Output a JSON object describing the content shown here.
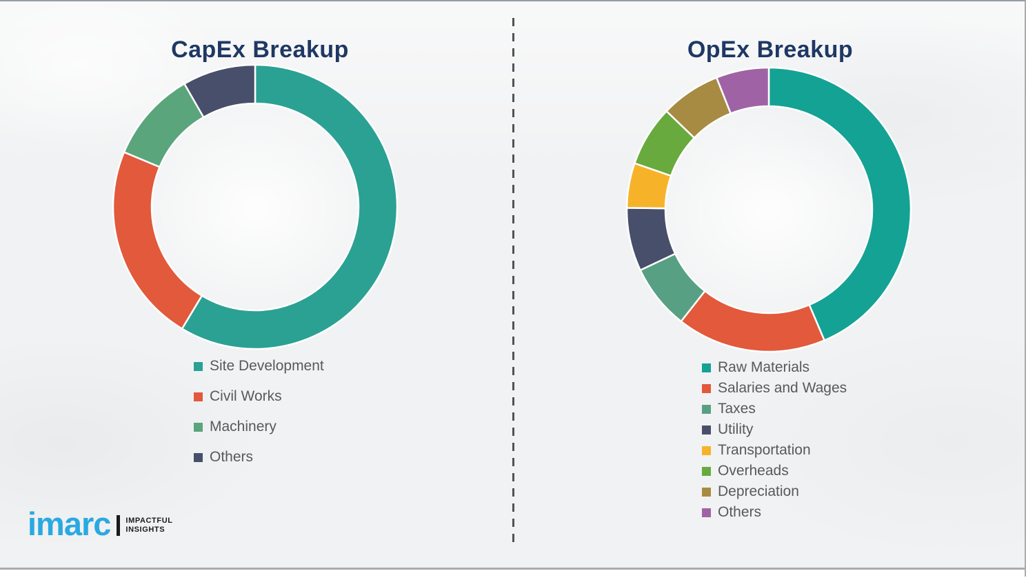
{
  "charts_header_note": "Two donut charts side by side separated by a vertical dashed divider",
  "chart_data": [
    {
      "type": "pie",
      "subtype": "donut",
      "title": "CapEx Breakup",
      "categories": [
        "Site Development",
        "Civil Works",
        "Machinery",
        "Others"
      ],
      "values": [
        58.6,
        22.7,
        10.4,
        8.3
      ],
      "colors": [
        "#2aa193",
        "#e2593c",
        "#5aa57c",
        "#474f6b"
      ],
      "legend_position": "below",
      "value_labels_shown": false,
      "start_angle_deg": 0,
      "direction": "clockwise"
    },
    {
      "type": "pie",
      "subtype": "donut",
      "title": "OpEx Breakup",
      "categories": [
        "Raw Materials",
        "Salaries and Wages",
        "Taxes",
        "Utility",
        "Transportation",
        "Overheads",
        "Depreciation",
        "Others"
      ],
      "values": [
        43.6,
        17.0,
        7.4,
        7.2,
        5.1,
        6.9,
        6.8,
        6.0
      ],
      "colors": [
        "#14a294",
        "#e2593c",
        "#58a083",
        "#474f6b",
        "#f6b32a",
        "#68aa3e",
        "#a78b42",
        "#9f63a5"
      ],
      "legend_position": "below",
      "value_labels_shown": false,
      "start_angle_deg": 0,
      "direction": "clockwise"
    }
  ],
  "style": {
    "title_color": "#1f3864",
    "legend_text_color": "#595959",
    "divider_color": "#4f5356",
    "background_color": "#f1f2f3",
    "segment_gap_color": "#ffffff"
  },
  "logo": {
    "brand": "imarc",
    "tagline_line1": "IMPACTFUL",
    "tagline_line2": "INSIGHTS",
    "brand_color": "#2aa9e1"
  }
}
